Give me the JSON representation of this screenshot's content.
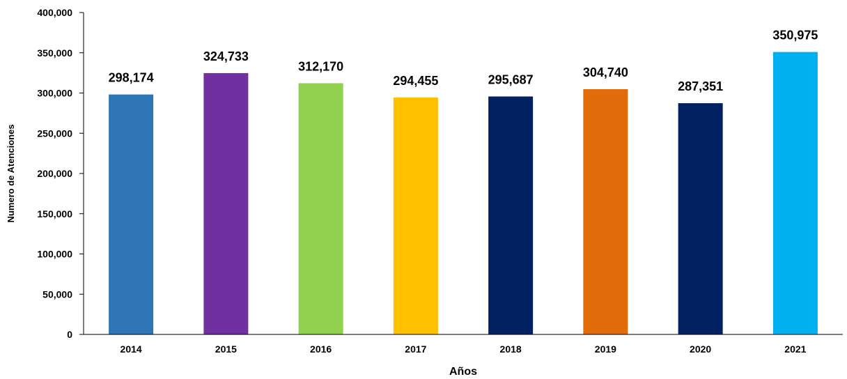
{
  "chart_data": {
    "type": "bar",
    "categories": [
      "2014",
      "2015",
      "2016",
      "2017",
      "2018",
      "2019",
      "2020",
      "2021"
    ],
    "values": [
      298174,
      324733,
      312170,
      294455,
      295687,
      304740,
      287351,
      350975
    ],
    "data_labels": [
      "298,174",
      "324,733",
      "312,170",
      "294,455",
      "295,687",
      "304,740",
      "287,351",
      "350,975"
    ],
    "colors": [
      "#2E75B6",
      "#7030A0",
      "#92D050",
      "#FFC000",
      "#002060",
      "#E36C0A",
      "#002060",
      "#00B0F0"
    ],
    "xlabel": "Años",
    "ylabel": "Numero de Atenciones",
    "ylim": [
      0,
      400000
    ],
    "y_ticks": [
      0,
      50000,
      100000,
      150000,
      200000,
      250000,
      300000,
      350000,
      400000
    ],
    "y_tick_labels": [
      "0",
      "50,000",
      "100,000",
      "150,000",
      "200,000",
      "250,000",
      "300,000",
      "350,000",
      "400,000"
    ],
    "grid": false,
    "legend": "none"
  }
}
